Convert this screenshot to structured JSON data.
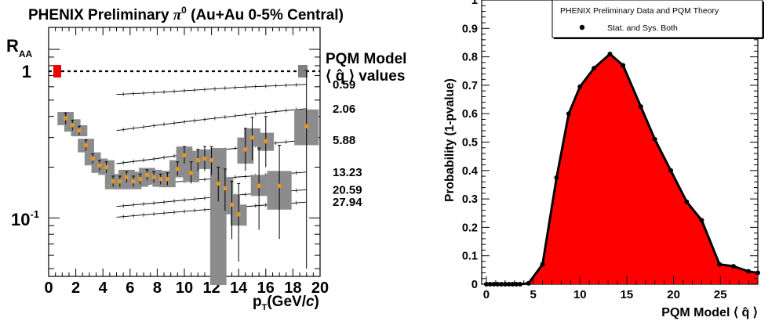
{
  "chart_data": [
    {
      "type": "scatter",
      "title": "PHENIX Preliminary π⁰ (Au+Au 0-5% Central)",
      "title_prefix": "PHENIX Preliminary ",
      "title_pi": "π",
      "title_sup": "0",
      "title_suffix": " (Au+Au 0-5% Central)",
      "ylabel": "R",
      "ylabel_sub": "AA",
      "xlabel": "p",
      "xlabel_sub": "T",
      "xlabel_unit": "(GeV/",
      "xlabel_unit_italic": "c",
      "xlabel_unit_end": ")",
      "xlim": [
        0,
        20
      ],
      "ylim": [
        0.045,
        1.35
      ],
      "yscale": "log",
      "x_ticks": [
        "0",
        "2",
        "4",
        "6",
        "8",
        "10",
        "12",
        "14",
        "16",
        "18",
        "20"
      ],
      "y_tick_labels": {
        "one": "1",
        "tenth_base": "10",
        "tenth_exp": "-1"
      },
      "reference_line": 1,
      "model_label_line1": "PQM Model",
      "model_label_line2": "⟨ q̂ ⟩ values",
      "marker_color": "#e8961e",
      "sys_box_color": "#8c8c8c",
      "unity_box_left_color": "#ee0000",
      "unity_box_right_color": "#808080",
      "model_curves": [
        {
          "label": "0.59",
          "points": [
            [
              5,
              0.54
            ],
            [
              8,
              0.555
            ],
            [
              11,
              0.575
            ],
            [
              14,
              0.595
            ],
            [
              17,
              0.61
            ],
            [
              19,
              0.62
            ]
          ]
        },
        {
          "label": "2.06",
          "points": [
            [
              5,
              0.33
            ],
            [
              8,
              0.355
            ],
            [
              11,
              0.38
            ],
            [
              14,
              0.405
            ],
            [
              17,
              0.43
            ],
            [
              19,
              0.445
            ]
          ]
        },
        {
          "label": "5.88",
          "points": [
            [
              5,
              0.21
            ],
            [
              8,
              0.225
            ],
            [
              11,
              0.245
            ],
            [
              14,
              0.26
            ],
            [
              17,
              0.28
            ],
            [
              19,
              0.29
            ]
          ]
        },
        {
          "label": "13.23",
          "points": [
            [
              5,
              0.152
            ],
            [
              8,
              0.16
            ],
            [
              11,
              0.168
            ],
            [
              14,
              0.175
            ],
            [
              17,
              0.182
            ],
            [
              19,
              0.187
            ]
          ]
        },
        {
          "label": "20.59",
          "points": [
            [
              5,
              0.117
            ],
            [
              8,
              0.123
            ],
            [
              11,
              0.13
            ],
            [
              14,
              0.137
            ],
            [
              17,
              0.143
            ],
            [
              19,
              0.147
            ]
          ]
        },
        {
          "label": "27.94",
          "points": [
            [
              5,
              0.101
            ],
            [
              8,
              0.106
            ],
            [
              11,
              0.111
            ],
            [
              14,
              0.116
            ],
            [
              17,
              0.121
            ],
            [
              19,
              0.124
            ]
          ]
        }
      ],
      "points": [
        {
          "x": 1.25,
          "y": 0.39,
          "lo": 0.36,
          "hi": 0.42,
          "slo": 0.355,
          "shi": 0.425
        },
        {
          "x": 1.75,
          "y": 0.355,
          "lo": 0.33,
          "hi": 0.38,
          "slo": 0.325,
          "shi": 0.385
        },
        {
          "x": 2.25,
          "y": 0.33,
          "lo": 0.31,
          "hi": 0.35,
          "slo": 0.305,
          "shi": 0.355
        },
        {
          "x": 2.75,
          "y": 0.27,
          "lo": 0.25,
          "hi": 0.29,
          "slo": 0.245,
          "shi": 0.295
        },
        {
          "x": 3.25,
          "y": 0.225,
          "lo": 0.21,
          "hi": 0.24,
          "slo": 0.205,
          "shi": 0.245
        },
        {
          "x": 3.75,
          "y": 0.205,
          "lo": 0.19,
          "hi": 0.22,
          "slo": 0.185,
          "shi": 0.225
        },
        {
          "x": 4.25,
          "y": 0.2,
          "lo": 0.185,
          "hi": 0.215,
          "slo": 0.18,
          "shi": 0.22
        },
        {
          "x": 4.75,
          "y": 0.165,
          "lo": 0.153,
          "hi": 0.177,
          "slo": 0.148,
          "shi": 0.182
        },
        {
          "x": 5.25,
          "y": 0.165,
          "lo": 0.153,
          "hi": 0.177,
          "slo": 0.148,
          "shi": 0.182
        },
        {
          "x": 5.75,
          "y": 0.175,
          "lo": 0.162,
          "hi": 0.188,
          "slo": 0.158,
          "shi": 0.193
        },
        {
          "x": 6.25,
          "y": 0.165,
          "lo": 0.153,
          "hi": 0.177,
          "slo": 0.148,
          "shi": 0.182
        },
        {
          "x": 6.75,
          "y": 0.17,
          "lo": 0.158,
          "hi": 0.182,
          "slo": 0.153,
          "shi": 0.188
        },
        {
          "x": 7.25,
          "y": 0.18,
          "lo": 0.167,
          "hi": 0.193,
          "slo": 0.162,
          "shi": 0.198
        },
        {
          "x": 7.75,
          "y": 0.175,
          "lo": 0.162,
          "hi": 0.188,
          "slo": 0.158,
          "shi": 0.193
        },
        {
          "x": 8.25,
          "y": 0.17,
          "lo": 0.158,
          "hi": 0.182,
          "slo": 0.153,
          "shi": 0.188
        },
        {
          "x": 8.75,
          "y": 0.17,
          "lo": 0.156,
          "hi": 0.185,
          "slo": 0.152,
          "shi": 0.19
        },
        {
          "x": 9.5,
          "y": 0.195,
          "lo": 0.178,
          "hi": 0.215,
          "slo": 0.174,
          "shi": 0.22
        },
        {
          "x": 10.0,
          "y": 0.235,
          "lo": 0.21,
          "hi": 0.265,
          "slo": 0.208,
          "shi": 0.265
        },
        {
          "x": 10.5,
          "y": 0.185,
          "lo": 0.16,
          "hi": 0.215,
          "slo": 0.163,
          "shi": 0.21
        },
        {
          "x": 11.0,
          "y": 0.22,
          "lo": 0.19,
          "hi": 0.255,
          "slo": 0.195,
          "shi": 0.25
        },
        {
          "x": 11.5,
          "y": 0.225,
          "lo": 0.19,
          "hi": 0.265,
          "slo": 0.2,
          "shi": 0.255
        },
        {
          "x": 12.0,
          "y": 0.22,
          "lo": 0.18,
          "hi": 0.265,
          "slo": 0.195,
          "shi": 0.25
        },
        {
          "x": 12.5,
          "y": 0.16,
          "lo": 0.125,
          "hi": 0.2,
          "slo": 0.04,
          "shi": 0.26
        },
        {
          "x": 13.0,
          "y": 0.15,
          "lo": 0.11,
          "hi": 0.195,
          "slo": 0.13,
          "shi": 0.175
        },
        {
          "x": 13.5,
          "y": 0.12,
          "lo": 0.075,
          "hi": 0.165,
          "slo": 0.105,
          "shi": 0.138
        },
        {
          "x": 14.0,
          "y": 0.105,
          "lo": 0.055,
          "hi": 0.16,
          "slo": 0.09,
          "shi": 0.12
        },
        {
          "x": 14.5,
          "y": 0.255,
          "lo": 0.19,
          "hi": 0.34,
          "slo": 0.21,
          "shi": 0.3
        },
        {
          "x": 15.0,
          "y": 0.3,
          "lo": 0.22,
          "hi": 0.395,
          "slo": 0.265,
          "shi": 0.34
        },
        {
          "x": 15.5,
          "y": 0.155,
          "lo": 0.085,
          "hi": 0.26,
          "slo": 0.135,
          "shi": 0.18
        },
        {
          "x": 16.0,
          "y": 0.285,
          "lo": 0.2,
          "hi": 0.4,
          "slo": 0.25,
          "shi": 0.32
        },
        {
          "x": 17.0,
          "y": 0.155,
          "lo": 0.075,
          "hi": 0.27,
          "slo": 0.112,
          "shi": 0.19
        },
        {
          "x": 19.0,
          "y": 0.35,
          "lo": 0.05,
          "hi": 0.75,
          "slo": 0.27,
          "shi": 0.44
        }
      ]
    },
    {
      "type": "area",
      "title": "",
      "xlabel": "PQM Model",
      "xlabel_bracket": "⟨ q̂ ⟩",
      "ylabel": "Probability (1-pvalue)",
      "xlim": [
        -0.5,
        29
      ],
      "ylim": [
        0,
        1.0
      ],
      "x_ticks": [
        "0",
        "5",
        "10",
        "15",
        "20",
        "25"
      ],
      "y_ticks": [
        "0",
        "0.1",
        "0.2",
        "0.3",
        "0.4",
        "0.5",
        "0.6",
        "0.7",
        "0.8",
        "0.9",
        "1"
      ],
      "fill_color": "#ff0000",
      "legend": {
        "title": "PHENIX Preliminary Data and PQM Theory",
        "entry": "Stat. and Sys. Both",
        "position": "top-right"
      },
      "points": [
        [
          0.0,
          0.0
        ],
        [
          0.4,
          0.0
        ],
        [
          0.8,
          0.0
        ],
        [
          1.2,
          0.0
        ],
        [
          1.6,
          0.0
        ],
        [
          2.0,
          0.0
        ],
        [
          2.4,
          0.0
        ],
        [
          2.8,
          0.0
        ],
        [
          3.2,
          0.0
        ],
        [
          3.6,
          0.0
        ],
        [
          4.5,
          0.003
        ],
        [
          6.0,
          0.07
        ],
        [
          7.5,
          0.375
        ],
        [
          8.8,
          0.6
        ],
        [
          10.0,
          0.695
        ],
        [
          11.5,
          0.76
        ],
        [
          13.2,
          0.81
        ],
        [
          14.6,
          0.77
        ],
        [
          16.5,
          0.625
        ],
        [
          18.0,
          0.51
        ],
        [
          19.7,
          0.4
        ],
        [
          21.4,
          0.29
        ],
        [
          23.0,
          0.225
        ],
        [
          24.9,
          0.07
        ],
        [
          26.4,
          0.063
        ],
        [
          28.0,
          0.045
        ],
        [
          29.0,
          0.04
        ]
      ]
    }
  ]
}
